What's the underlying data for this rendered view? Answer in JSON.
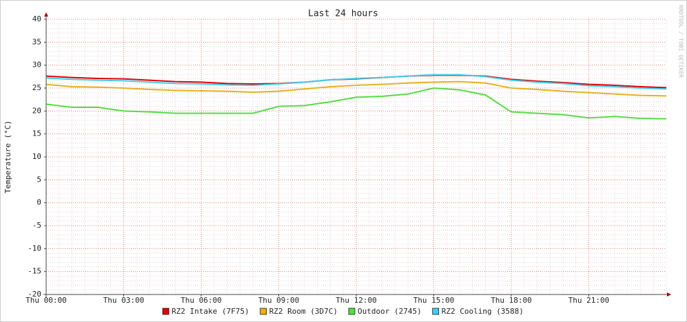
{
  "chart_data": {
    "type": "line",
    "title": "Last 24 hours",
    "y_label": "Temperature (°C)",
    "watermark": "RRDTOOL / TOBI OETIKER",
    "x": [
      0,
      1,
      2,
      3,
      4,
      5,
      6,
      7,
      8,
      9,
      10,
      11,
      12,
      13,
      14,
      15,
      16,
      17,
      18,
      19,
      20,
      21,
      22,
      23,
      24
    ],
    "xlim": [
      0,
      24
    ],
    "xticks": [
      {
        "value": 0,
        "label": "Thu 00:00"
      },
      {
        "value": 3,
        "label": "Thu 03:00"
      },
      {
        "value": 6,
        "label": "Thu 06:00"
      },
      {
        "value": 9,
        "label": "Thu 09:00"
      },
      {
        "value": 12,
        "label": "Thu 12:00"
      },
      {
        "value": 15,
        "label": "Thu 15:00"
      },
      {
        "value": 18,
        "label": "Thu 18:00"
      },
      {
        "value": 21,
        "label": "Thu 21:00"
      }
    ],
    "ylim": [
      -20,
      40
    ],
    "yticks": [
      -20,
      -15,
      -10,
      -5,
      0,
      5,
      10,
      15,
      20,
      25,
      30,
      35,
      40
    ],
    "grid": true,
    "series": [
      {
        "name": "RZ2 Intake (7F75)",
        "color": "#e00000",
        "values": [
          27.6,
          27.3,
          27.1,
          27.0,
          26.7,
          26.4,
          26.3,
          26.0,
          25.9,
          26.0,
          26.3,
          26.8,
          27.0,
          27.3,
          27.6,
          27.8,
          27.8,
          27.6,
          26.9,
          26.5,
          26.2,
          25.8,
          25.6,
          25.3,
          25.1
        ]
      },
      {
        "name": "RZ2 Room (3D7C)",
        "color": "#e8b020",
        "values": [
          25.8,
          25.3,
          25.2,
          25.0,
          24.7,
          24.5,
          24.4,
          24.3,
          24.1,
          24.3,
          24.8,
          25.3,
          25.6,
          25.8,
          26.1,
          26.3,
          26.4,
          26.1,
          25.0,
          24.7,
          24.3,
          24.0,
          23.7,
          23.4,
          23.3
        ]
      },
      {
        "name": "Outdoor (2745)",
        "color": "#55dd44",
        "values": [
          21.5,
          20.8,
          20.8,
          20.0,
          19.8,
          19.5,
          19.5,
          19.5,
          19.5,
          21.0,
          21.2,
          22.0,
          23.0,
          23.2,
          23.7,
          25.0,
          24.6,
          23.5,
          19.8,
          19.5,
          19.2,
          18.5,
          18.8,
          18.4,
          18.3
        ]
      },
      {
        "name": "RZ2 Cooling (3588)",
        "color": "#44ccee",
        "values": [
          27.2,
          26.9,
          26.7,
          26.6,
          26.3,
          26.0,
          25.9,
          25.7,
          25.6,
          25.9,
          26.3,
          26.8,
          27.1,
          27.3,
          27.6,
          27.9,
          27.9,
          27.5,
          26.7,
          26.3,
          26.0,
          25.5,
          25.3,
          25.0,
          24.8
        ]
      }
    ]
  }
}
